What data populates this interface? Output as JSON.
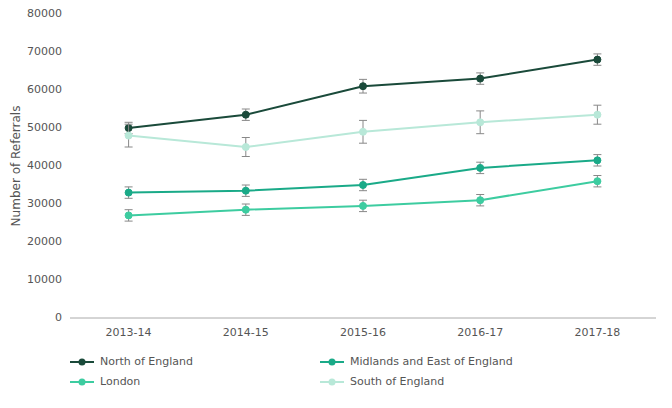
{
  "chart_data": {
    "type": "line",
    "y_label": "Number of Referrals",
    "categories": [
      "2013-14",
      "2014-15",
      "2015-16",
      "2016-17",
      "2017-18"
    ],
    "series": [
      {
        "name": "North of England",
        "color": "#1a4a3a",
        "values": [
          50000,
          53500,
          61000,
          63000,
          68000
        ],
        "error_low": [
          1500,
          1500,
          1800,
          1500,
          1500
        ],
        "error_high": [
          1500,
          1500,
          1800,
          1500,
          1500
        ]
      },
      {
        "name": "Midlands and East of England",
        "color": "#1aaa88",
        "values": [
          33000,
          33500,
          35000,
          39500,
          41500
        ],
        "error_low": [
          1500,
          1500,
          1500,
          1500,
          1500
        ],
        "error_high": [
          1500,
          1500,
          1500,
          1500,
          1500
        ]
      },
      {
        "name": "London",
        "color": "#3dcca0",
        "values": [
          27000,
          28500,
          29500,
          31000,
          36000
        ],
        "error_low": [
          1500,
          1500,
          1500,
          1500,
          1500
        ],
        "error_high": [
          1500,
          1500,
          1500,
          1500,
          1500
        ]
      },
      {
        "name": "South of England",
        "color": "#b8e8d8",
        "values": [
          48000,
          45000,
          49000,
          51500,
          53500
        ],
        "error_low": [
          3000,
          2500,
          3000,
          3000,
          2500
        ],
        "error_high": [
          3000,
          2500,
          3000,
          3000,
          2500
        ]
      }
    ],
    "ylim": [
      0,
      80000
    ],
    "yticks": [
      0,
      10000,
      20000,
      30000,
      40000,
      50000,
      60000,
      70000,
      80000
    ],
    "grid": false,
    "legend": "bottom",
    "marker": "circle"
  }
}
